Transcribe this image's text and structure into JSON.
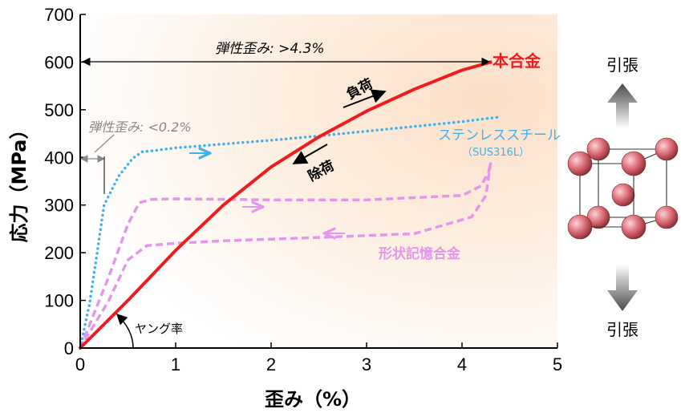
{
  "chart_data": {
    "type": "line",
    "xlabel": "歪み（%）",
    "ylabel": "応力（MPa）",
    "xlim": [
      0,
      5
    ],
    "ylim": [
      0,
      700
    ],
    "x_ticks": [
      "0",
      "1",
      "2",
      "3",
      "4",
      "5"
    ],
    "y_ticks": [
      "0",
      "100",
      "200",
      "300",
      "400",
      "500",
      "600",
      "700"
    ],
    "grid": false,
    "series": [
      {
        "name": "本合金",
        "color": "#ee1c1c",
        "style": "solid",
        "x": [
          0,
          0.5,
          1.0,
          1.5,
          2.0,
          2.5,
          3.0,
          3.5,
          4.0,
          4.3
        ],
        "y": [
          0,
          100,
          205,
          300,
          380,
          443,
          497,
          543,
          583,
          600
        ]
      },
      {
        "name": "ステンレススチール",
        "sublabel": "（SUS316L）",
        "color": "#3fb0ee",
        "style": "dotted",
        "x": [
          0,
          0.1,
          0.25,
          0.4,
          0.55,
          0.65,
          0.8,
          1.0,
          1.5,
          2.0,
          2.5,
          3.0,
          3.5,
          4.0,
          4.4
        ],
        "y": [
          0,
          95,
          300,
          360,
          398,
          412,
          415,
          420,
          428,
          436,
          445,
          455,
          465,
          475,
          485
        ]
      },
      {
        "name": "形状記憶合金",
        "color": "#e397ea",
        "style": "dashed",
        "x": [
          0,
          0.3,
          0.5,
          0.62,
          0.75,
          1.0,
          2.0,
          3.0,
          4.0,
          4.2,
          4.28,
          4.3,
          4.25,
          4.1,
          3.5,
          2.5,
          1.5,
          1.0,
          0.7,
          0.5,
          0.3,
          0
        ],
        "y": [
          0,
          150,
          260,
          305,
          312,
          313,
          311,
          311,
          320,
          340,
          370,
          390,
          320,
          275,
          240,
          232,
          225,
          220,
          215,
          185,
          100,
          0
        ]
      }
    ],
    "annotations": {
      "elastic_strain_alloy": "弾性歪み: >4.3%",
      "elastic_strain_steel": "弾性歪み: <0.2%",
      "loading": "負荷",
      "unloading": "除荷",
      "youngs_modulus": "ヤング率"
    },
    "crystal": {
      "label_top": "引張",
      "label_bottom": "引張",
      "atom_color": "#e0707a"
    }
  }
}
